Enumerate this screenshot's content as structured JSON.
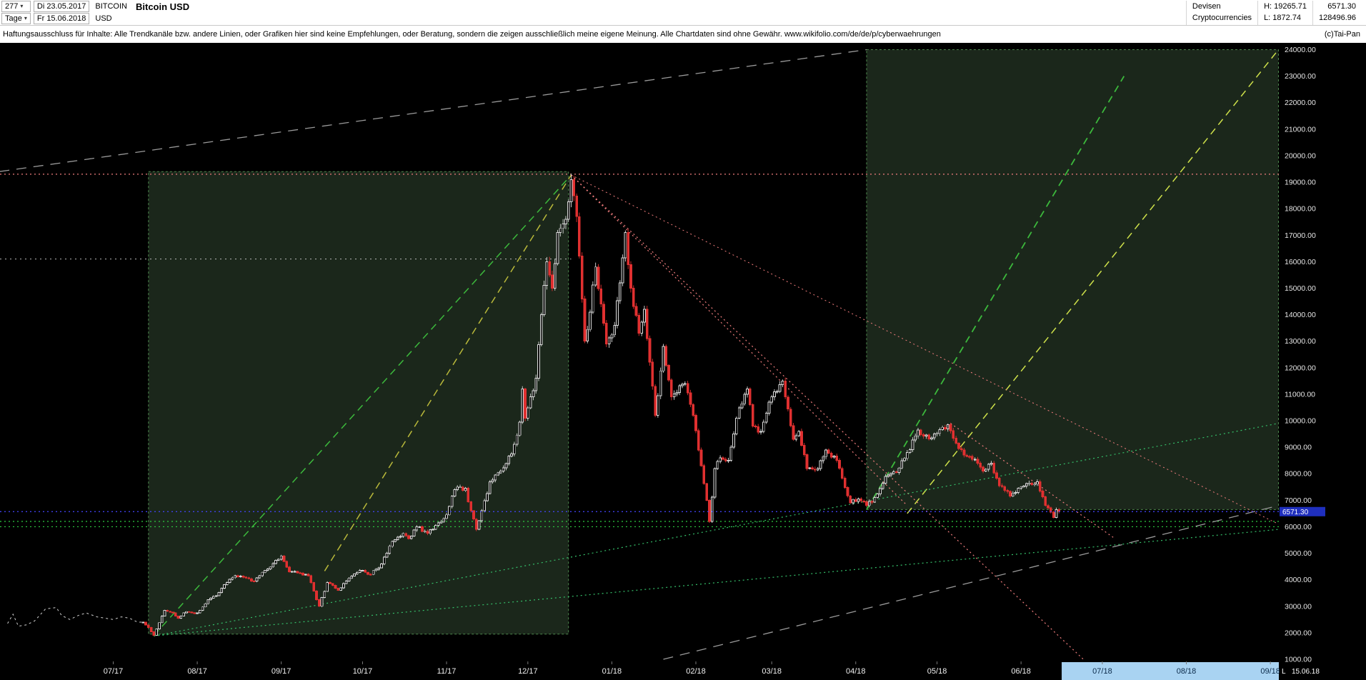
{
  "header": {
    "bar_count": "277",
    "start_date": "Di 23.05.2017",
    "symbol": "BITCOIN",
    "currency": "USD",
    "timeframe": "Tage",
    "end_date": "Fr 15.06.2018",
    "title": "Bitcoin USD",
    "category_line1": "Devisen",
    "category_line2": "Cryptocurrencies",
    "high_label": "H: 19265.71",
    "low_label": "L: 1872.74",
    "last_price": "6571.30",
    "second_value": "128496.96"
  },
  "disclaimer": {
    "text": "Haftungsausschluss für Inhalte: Alle Trendkanäle bzw. andere Linien, oder Grafiken hier sind keine Empfehlungen, oder Beratung, sondern die zeigen ausschließlich meine eigene Meinung. Alle Chartdaten sind ohne Gewähr.  www.wikifolio.com/de/de/p/cyberwaehrungen",
    "copyright": "(c)Tai-Pan"
  },
  "axis": {
    "price_min": 1000,
    "price_max": 24000,
    "price_step": 1000,
    "months": [
      {
        "label": "07/17",
        "date": "2017-07-01"
      },
      {
        "label": "08/17",
        "date": "2017-08-01"
      },
      {
        "label": "09/17",
        "date": "2017-09-01"
      },
      {
        "label": "10/17",
        "date": "2017-10-01"
      },
      {
        "label": "11/17",
        "date": "2017-11-01"
      },
      {
        "label": "12/17",
        "date": "2017-12-01"
      },
      {
        "label": "01/18",
        "date": "2018-01-01"
      },
      {
        "label": "02/18",
        "date": "2018-02-01"
      },
      {
        "label": "03/18",
        "date": "2018-03-01"
      },
      {
        "label": "04/18",
        "date": "2018-04-01"
      },
      {
        "label": "05/18",
        "date": "2018-05-01"
      },
      {
        "label": "06/18",
        "date": "2018-06-01"
      },
      {
        "label": "07/18",
        "date": "2018-07-01"
      },
      {
        "label": "08/18",
        "date": "2018-08-01"
      },
      {
        "label": "09/18",
        "date": "2018-09-01"
      }
    ],
    "future_start": "2018-06-16",
    "last_marker": "L",
    "last_date_label": "15.06.18"
  },
  "price_marker": {
    "value": 6571.3,
    "label": "6571.30",
    "bg": "#1f2fbe",
    "line_color": "#4444ff"
  },
  "colors": {
    "chart_bg": "#000000",
    "box_fill": "rgba(170,240,170,0.16)",
    "box_stroke": "rgba(130,230,130,0.55)",
    "candle_up_stroke": "#d9d9d9",
    "candle_up_fill": "#0b0b0b",
    "candle_down": "#e03030",
    "pre_line": "#cfcfcf",
    "axis_text": "#e6e6e6",
    "month_text": "#efefef",
    "future_bg": "#a9d3f2",
    "future_text": "#0b2a4a"
  },
  "chart_data": {
    "type": "candlestick",
    "title": "Bitcoin USD",
    "timeframe": "daily (Tage)",
    "x_start": "2017-05-23",
    "x_end": "2018-09-04",
    "ylim": [
      1000,
      24000
    ],
    "period_high": 19265.71,
    "period_low": 1872.74,
    "last_close": 6571.3,
    "pre_period_line": [
      [
        "2017-05-23",
        2350
      ],
      [
        "2017-05-25",
        2700
      ],
      [
        "2017-05-27",
        2250
      ],
      [
        "2017-05-30",
        2300
      ],
      [
        "2017-06-02",
        2450
      ],
      [
        "2017-06-06",
        2900
      ],
      [
        "2017-06-10",
        2950
      ],
      [
        "2017-06-12",
        2650
      ],
      [
        "2017-06-15",
        2500
      ],
      [
        "2017-06-18",
        2650
      ],
      [
        "2017-06-21",
        2750
      ],
      [
        "2017-06-25",
        2600
      ],
      [
        "2017-06-28",
        2550
      ],
      [
        "2017-07-01",
        2500
      ],
      [
        "2017-07-04",
        2600
      ],
      [
        "2017-07-07",
        2550
      ],
      [
        "2017-07-10",
        2400
      ],
      [
        "2017-07-12",
        2400
      ]
    ],
    "close_keypoints": [
      [
        "2017-07-12",
        2400
      ],
      [
        "2017-07-14",
        2200
      ],
      [
        "2017-07-16",
        1900
      ],
      [
        "2017-07-20",
        2850
      ],
      [
        "2017-07-23",
        2750
      ],
      [
        "2017-07-25",
        2550
      ],
      [
        "2017-07-28",
        2800
      ],
      [
        "2017-08-01",
        2750
      ],
      [
        "2017-08-05",
        3250
      ],
      [
        "2017-08-08",
        3400
      ],
      [
        "2017-08-12",
        3900
      ],
      [
        "2017-08-15",
        4150
      ],
      [
        "2017-08-18",
        4100
      ],
      [
        "2017-08-22",
        3950
      ],
      [
        "2017-08-26",
        4350
      ],
      [
        "2017-09-01",
        4900
      ],
      [
        "2017-09-04",
        4300
      ],
      [
        "2017-09-08",
        4250
      ],
      [
        "2017-09-11",
        4150
      ],
      [
        "2017-09-14",
        3250
      ],
      [
        "2017-09-15",
        3000
      ],
      [
        "2017-09-18",
        3900
      ],
      [
        "2017-09-22",
        3600
      ],
      [
        "2017-09-25",
        3950
      ],
      [
        "2017-09-30",
        4350
      ],
      [
        "2017-10-04",
        4200
      ],
      [
        "2017-10-08",
        4600
      ],
      [
        "2017-10-12",
        5450
      ],
      [
        "2017-10-16",
        5750
      ],
      [
        "2017-10-18",
        5550
      ],
      [
        "2017-10-21",
        6000
      ],
      [
        "2017-10-25",
        5750
      ],
      [
        "2017-10-29",
        6150
      ],
      [
        "2017-11-01",
        6450
      ],
      [
        "2017-11-04",
        7400
      ],
      [
        "2017-11-08",
        7450
      ],
      [
        "2017-11-10",
        6600
      ],
      [
        "2017-11-12",
        5900
      ],
      [
        "2017-11-14",
        6600
      ],
      [
        "2017-11-17",
        7700
      ],
      [
        "2017-11-21",
        8100
      ],
      [
        "2017-11-25",
        8750
      ],
      [
        "2017-11-28",
        9950
      ],
      [
        "2017-11-29",
        11200
      ],
      [
        "2017-11-30",
        10100
      ],
      [
        "2017-12-02",
        10900
      ],
      [
        "2017-12-04",
        11600
      ],
      [
        "2017-12-06",
        14000
      ],
      [
        "2017-12-08",
        16000
      ],
      [
        "2017-12-10",
        15000
      ],
      [
        "2017-12-12",
        17100
      ],
      [
        "2017-12-15",
        17600
      ],
      [
        "2017-12-17",
        19100
      ],
      [
        "2017-12-19",
        17700
      ],
      [
        "2017-12-22",
        13000
      ],
      [
        "2017-12-24",
        14100
      ],
      [
        "2017-12-26",
        15800
      ],
      [
        "2017-12-28",
        14400
      ],
      [
        "2017-12-30",
        12900
      ],
      [
        "2018-01-02",
        13600
      ],
      [
        "2018-01-04",
        15200
      ],
      [
        "2018-01-06",
        17100
      ],
      [
        "2018-01-08",
        15000
      ],
      [
        "2018-01-11",
        13300
      ],
      [
        "2018-01-13",
        14200
      ],
      [
        "2018-01-16",
        11300
      ],
      [
        "2018-01-17",
        10200
      ],
      [
        "2018-01-20",
        12800
      ],
      [
        "2018-01-23",
        10900
      ],
      [
        "2018-01-28",
        11400
      ],
      [
        "2018-01-31",
        10200
      ],
      [
        "2018-02-02",
        8900
      ],
      [
        "2018-02-05",
        7000
      ],
      [
        "2018-02-06",
        6200
      ],
      [
        "2018-02-08",
        8200
      ],
      [
        "2018-02-10",
        8600
      ],
      [
        "2018-02-13",
        8500
      ],
      [
        "2018-02-16",
        10100
      ],
      [
        "2018-02-20",
        11200
      ],
      [
        "2018-02-22",
        9800
      ],
      [
        "2018-02-25",
        9600
      ],
      [
        "2018-03-01",
        10900
      ],
      [
        "2018-03-05",
        11500
      ],
      [
        "2018-03-09",
        9300
      ],
      [
        "2018-03-11",
        9600
      ],
      [
        "2018-03-14",
        8200
      ],
      [
        "2018-03-18",
        8200
      ],
      [
        "2018-03-21",
        8900
      ],
      [
        "2018-03-25",
        8500
      ],
      [
        "2018-03-30",
        6900
      ],
      [
        "2018-04-02",
        7050
      ],
      [
        "2018-04-05",
        6800
      ],
      [
        "2018-04-08",
        7100
      ],
      [
        "2018-04-12",
        7900
      ],
      [
        "2018-04-16",
        8050
      ],
      [
        "2018-04-20",
        8800
      ],
      [
        "2018-04-24",
        9650
      ],
      [
        "2018-04-29",
        9350
      ],
      [
        "2018-05-03",
        9750
      ],
      [
        "2018-05-05",
        9850
      ],
      [
        "2018-05-08",
        9150
      ],
      [
        "2018-05-11",
        8700
      ],
      [
        "2018-05-15",
        8550
      ],
      [
        "2018-05-18",
        8100
      ],
      [
        "2018-05-21",
        8400
      ],
      [
        "2018-05-24",
        7550
      ],
      [
        "2018-05-28",
        7150
      ],
      [
        "2018-06-01",
        7500
      ],
      [
        "2018-06-04",
        7650
      ],
      [
        "2018-06-07",
        7700
      ],
      [
        "2018-06-10",
        6800
      ],
      [
        "2018-06-12",
        6550
      ],
      [
        "2018-06-13",
        6350
      ],
      [
        "2018-06-14",
        6650
      ],
      [
        "2018-06-15",
        6571.3
      ]
    ],
    "overlays": {
      "boxes": [
        {
          "x1": "2017-07-14",
          "p1": 1950,
          "x2": "2017-12-16",
          "p2": 19400
        },
        {
          "x1": "2018-04-05",
          "p1": 6650,
          "x2": "2018-09-04",
          "p2": 24000
        }
      ],
      "lines": [
        {
          "from": [
            "2017-07-16",
            1900
          ],
          "to": [
            "2017-12-17",
            19270
          ],
          "color": "#3cb93c",
          "dash": "10 7",
          "w": 1.5
        },
        {
          "from": [
            "2017-09-17",
            4330
          ],
          "to": [
            "2017-12-17",
            19270
          ],
          "color": "#b9b93a",
          "dash": "10 7",
          "w": 1.5
        },
        {
          "from": [
            "2018-04-05",
            6650
          ],
          "to": [
            "2018-07-09",
            23000
          ],
          "color": "#3cb93c",
          "dash": "10 7",
          "w": 1.8
        },
        {
          "from": [
            "2018-04-20",
            6500
          ],
          "to": [
            "2018-09-04",
            24000
          ],
          "color": "#cfe24a",
          "dash": "10 7",
          "w": 1.5
        },
        {
          "from": [
            "2017-05-20",
            19400
          ],
          "to": [
            "2018-04-05",
            24000
          ],
          "color": "#9a9a9a",
          "dash": "14 10",
          "w": 1.3
        },
        {
          "from": [
            "2018-01-20",
            1000
          ],
          "to": [
            "2018-09-04",
            6800
          ],
          "color": "#9a9a9a",
          "dash": "14 10",
          "w": 1.3
        },
        {
          "from": [
            "2017-12-17",
            19270
          ],
          "to": [
            "2018-04-20",
            6800
          ],
          "color": "#f07d7d",
          "dash": "2 4",
          "w": 1.2
        },
        {
          "from": [
            "2017-12-17",
            19270
          ],
          "to": [
            "2018-06-24",
            1000
          ],
          "color": "#f07d7d",
          "dash": "2 4",
          "w": 1.2
        },
        {
          "from": [
            "2017-12-17",
            19270
          ],
          "to": [
            "2018-09-04",
            6100
          ],
          "color": "#f07d7d",
          "dash": "2 4",
          "w": 1.0
        },
        {
          "from": [
            "2018-05-06",
            9900
          ],
          "to": [
            "2018-07-05",
            5600
          ],
          "color": "#f07d7d",
          "dash": "2 4",
          "w": 1.2
        },
        {
          "from": [
            "2017-07-16",
            1880
          ],
          "to": [
            "2018-09-04",
            5900
          ],
          "color": "#35c06a",
          "dash": "2 4",
          "w": 1.2
        },
        {
          "from": [
            "2017-07-16",
            1880
          ],
          "to": [
            "2018-09-04",
            9900
          ],
          "color": "#35c06a",
          "dash": "2 4",
          "w": 1.2
        }
      ],
      "hlines": [
        {
          "price": 19300,
          "color": "#f07d7d",
          "dash": "2 4",
          "w": 1.2
        },
        {
          "price": 16100,
          "color": "#bdbdbd",
          "dash": "2 5",
          "w": 1.0,
          "to": "2017-12-17"
        },
        {
          "price": 6200,
          "color": "#2ecc40",
          "dash": "2 4",
          "w": 1.2
        },
        {
          "price": 6000,
          "color": "#2ecc40",
          "dash": "2 4",
          "w": 1.2
        }
      ]
    }
  }
}
